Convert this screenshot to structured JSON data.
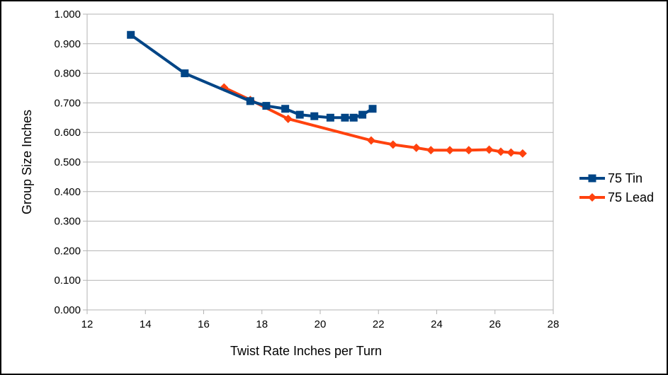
{
  "chart_data": {
    "type": "line",
    "title": "",
    "xlabel": "Twist Rate Inches per Turn",
    "ylabel": "Group Size Inches",
    "xlim": [
      12,
      28
    ],
    "ylim": [
      0,
      1
    ],
    "x_ticks": [
      "12",
      "14",
      "16",
      "18",
      "20",
      "22",
      "24",
      "26",
      "28"
    ],
    "y_ticks": [
      "0.000",
      "0.100",
      "0.200",
      "0.300",
      "0.400",
      "0.500",
      "0.600",
      "0.700",
      "0.800",
      "0.900",
      "1.000"
    ],
    "grid": true,
    "legend_position": "right",
    "series": [
      {
        "name": "75 Tin",
        "color": "#004586",
        "marker": "square",
        "x": [
          13.5,
          15.35,
          17.6,
          18.15,
          18.8,
          19.3,
          19.8,
          20.35,
          20.85,
          21.15,
          21.45,
          21.8
        ],
        "y": [
          0.93,
          0.8,
          0.706,
          0.69,
          0.68,
          0.66,
          0.655,
          0.65,
          0.65,
          0.65,
          0.66,
          0.68
        ]
      },
      {
        "name": "75 Lead",
        "color": "#ff420e",
        "marker": "diamond",
        "x": [
          16.7,
          17.6,
          18.9,
          21.75,
          22.5,
          23.3,
          23.8,
          24.45,
          25.1,
          25.8,
          26.2,
          26.55,
          26.95
        ],
        "y": [
          0.752,
          0.71,
          0.646,
          0.573,
          0.559,
          0.548,
          0.54,
          0.54,
          0.54,
          0.542,
          0.535,
          0.532,
          0.529
        ]
      }
    ]
  }
}
